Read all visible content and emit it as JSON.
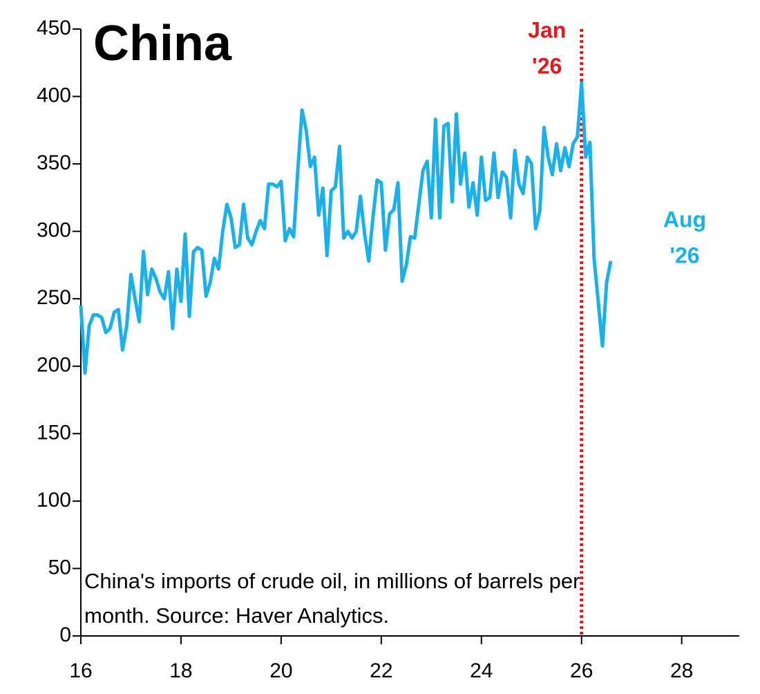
{
  "chart_data": {
    "type": "line",
    "title": "China",
    "note": [
      "China's imports of crude oil, in millions of barrels per",
      "month. Source: Haver Analytics."
    ],
    "annotations": [
      {
        "lines": [
          "Jan",
          "'26"
        ],
        "x": 26,
        "color": "#e31a1c"
      },
      {
        "lines": [
          "Aug",
          "'26"
        ],
        "x": 26.583,
        "color": "#1bb0e8"
      }
    ],
    "vline": {
      "x": 26,
      "color": "#e31a1c"
    },
    "xlim": [
      16,
      29.15
    ],
    "xticks": [
      16,
      18,
      20,
      22,
      24,
      26,
      28
    ],
    "ylim": [
      0,
      450
    ],
    "yticks": [
      0,
      50,
      100,
      150,
      200,
      250,
      300,
      350,
      400,
      450
    ],
    "series": [
      {
        "name": "China",
        "color": "#1bb0e8",
        "x": [
          16,
          16.083,
          16.167,
          16.25,
          16.333,
          16.417,
          16.5,
          16.583,
          16.667,
          16.75,
          16.833,
          16.917,
          17,
          17.083,
          17.167,
          17.25,
          17.333,
          17.417,
          17.5,
          17.583,
          17.667,
          17.75,
          17.833,
          17.917,
          18,
          18.083,
          18.167,
          18.25,
          18.333,
          18.417,
          18.5,
          18.583,
          18.667,
          18.75,
          18.833,
          18.917,
          19,
          19.083,
          19.167,
          19.25,
          19.333,
          19.417,
          19.5,
          19.583,
          19.667,
          19.75,
          19.833,
          19.917,
          20,
          20.083,
          20.167,
          20.25,
          20.333,
          20.417,
          20.5,
          20.583,
          20.667,
          20.75,
          20.833,
          20.917,
          21,
          21.083,
          21.167,
          21.25,
          21.333,
          21.417,
          21.5,
          21.583,
          21.667,
          21.75,
          21.833,
          21.917,
          22,
          22.083,
          22.167,
          22.25,
          22.333,
          22.417,
          22.5,
          22.583,
          22.667,
          22.75,
          22.833,
          22.917,
          23,
          23.083,
          23.167,
          23.25,
          23.333,
          23.417,
          23.5,
          23.583,
          23.667,
          23.75,
          23.833,
          23.917,
          24,
          24.083,
          24.167,
          24.25,
          24.333,
          24.417,
          24.5,
          24.583,
          24.667,
          24.75,
          24.833,
          24.917,
          25,
          25.083,
          25.167,
          25.25,
          25.333,
          25.417,
          25.5,
          25.583,
          25.667,
          25.75,
          25.833,
          25.917,
          26,
          26.083,
          26.167,
          26.25,
          26.333,
          26.417,
          26.5,
          26.583
        ],
        "values": [
          245,
          195,
          230,
          238,
          238,
          236,
          225,
          228,
          240,
          242,
          212,
          230,
          268,
          250,
          233,
          285,
          253,
          272,
          265,
          255,
          250,
          270,
          228,
          272,
          248,
          298,
          237,
          285,
          288,
          286,
          252,
          262,
          280,
          272,
          300,
          320,
          310,
          288,
          290,
          320,
          295,
          290,
          300,
          308,
          302,
          335,
          335,
          333,
          337,
          293,
          302,
          296,
          345,
          390,
          375,
          348,
          355,
          312,
          332,
          282,
          330,
          333,
          363,
          295,
          300,
          295,
          300,
          326,
          298,
          278,
          310,
          338,
          336,
          286,
          313,
          316,
          336,
          263,
          275,
          296,
          295,
          320,
          345,
          352,
          310,
          383,
          310,
          378,
          380,
          322,
          387,
          335,
          358,
          318,
          336,
          312,
          355,
          323,
          325,
          358,
          325,
          344,
          340,
          310,
          360,
          335,
          328,
          355,
          350,
          302,
          315,
          377,
          355,
          342,
          365,
          345,
          362,
          348,
          365,
          370,
          410,
          355,
          366,
          280,
          248,
          215,
          262,
          278
        ]
      }
    ]
  }
}
